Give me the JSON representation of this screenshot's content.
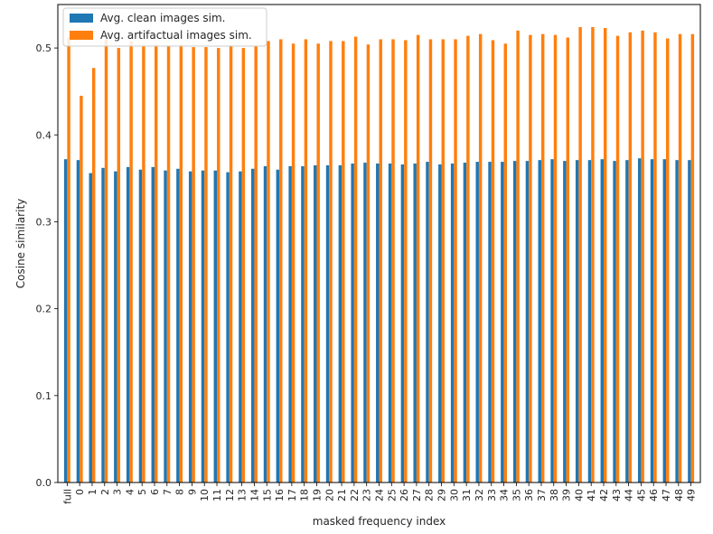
{
  "chart_data": {
    "type": "bar",
    "xlabel": "masked frequency index",
    "ylabel": "Cosine similarity",
    "ylim": [
      0,
      0.55
    ],
    "yticks": [
      "0.0",
      "0.1",
      "0.2",
      "0.3",
      "0.4",
      "0.5"
    ],
    "grid": false,
    "legend_placement": "top-left",
    "categories": [
      "full",
      "0",
      "1",
      "2",
      "3",
      "4",
      "5",
      "6",
      "7",
      "8",
      "9",
      "10",
      "11",
      "12",
      "13",
      "14",
      "15",
      "16",
      "17",
      "18",
      "19",
      "20",
      "21",
      "22",
      "23",
      "24",
      "25",
      "26",
      "27",
      "28",
      "29",
      "30",
      "31",
      "32",
      "33",
      "34",
      "35",
      "36",
      "37",
      "38",
      "39",
      "40",
      "41",
      "42",
      "43",
      "44",
      "45",
      "46",
      "47",
      "48",
      "49"
    ],
    "series": [
      {
        "name": "Avg. clean images sim.",
        "color": "#1f77b4",
        "values": [
          0.372,
          0.371,
          0.356,
          0.362,
          0.358,
          0.363,
          0.36,
          0.363,
          0.359,
          0.361,
          0.358,
          0.359,
          0.359,
          0.357,
          0.358,
          0.361,
          0.364,
          0.36,
          0.364,
          0.364,
          0.365,
          0.365,
          0.365,
          0.367,
          0.368,
          0.367,
          0.367,
          0.366,
          0.367,
          0.369,
          0.366,
          0.367,
          0.368,
          0.369,
          0.369,
          0.369,
          0.37,
          0.37,
          0.371,
          0.372,
          0.37,
          0.371,
          0.371,
          0.372,
          0.37,
          0.371,
          0.373,
          0.372,
          0.372,
          0.371,
          0.371
        ]
      },
      {
        "name": "Avg. artifactual images sim.",
        "color": "#ff7f0e",
        "values": [
          0.512,
          0.445,
          0.477,
          0.51,
          0.5,
          0.508,
          0.502,
          0.504,
          0.503,
          0.504,
          0.501,
          0.501,
          0.5,
          0.503,
          0.5,
          0.502,
          0.508,
          0.51,
          0.505,
          0.51,
          0.505,
          0.508,
          0.508,
          0.513,
          0.504,
          0.51,
          0.51,
          0.509,
          0.515,
          0.51,
          0.51,
          0.51,
          0.514,
          0.516,
          0.509,
          0.505,
          0.52,
          0.515,
          0.516,
          0.515,
          0.512,
          0.524,
          0.524,
          0.523,
          0.514,
          0.518,
          0.52,
          0.518,
          0.511,
          0.516,
          0.516
        ]
      }
    ]
  }
}
